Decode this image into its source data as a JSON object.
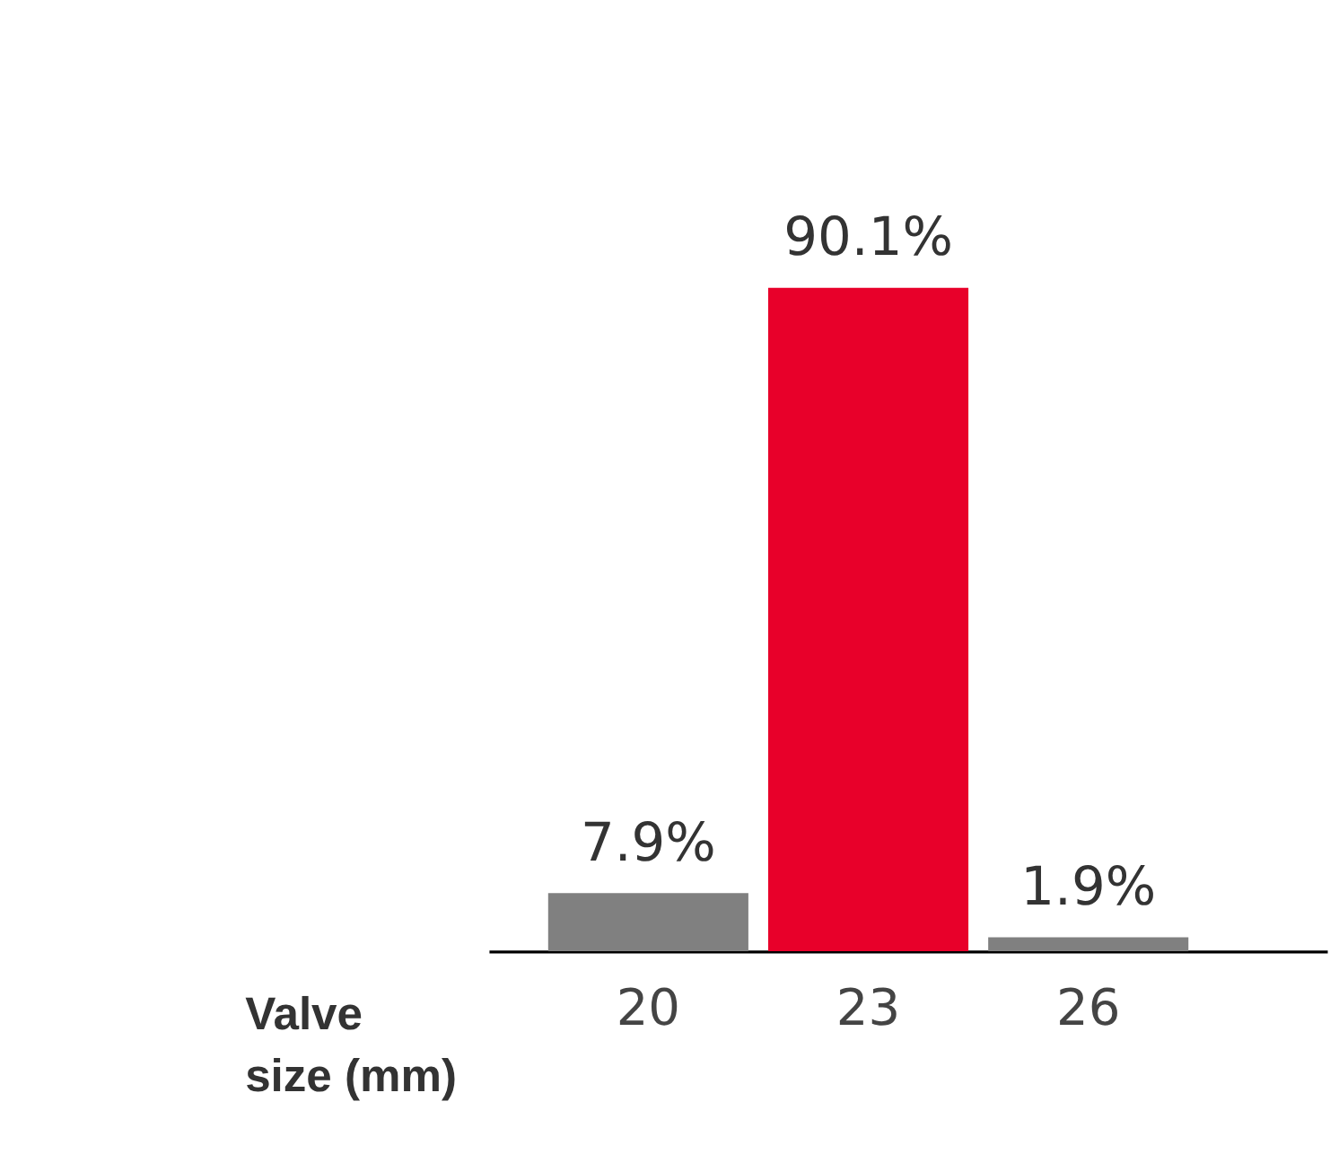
{
  "chart_data": {
    "type": "bar",
    "xlabel": "Valve size (mm)",
    "categories": [
      "20",
      "23",
      "26"
    ],
    "values": [
      7.9,
      90.1,
      1.9
    ],
    "value_labels": [
      "7.9%",
      "90.1%",
      "1.9%"
    ],
    "colors": [
      "#808080",
      "#e8002a",
      "#808080"
    ]
  }
}
